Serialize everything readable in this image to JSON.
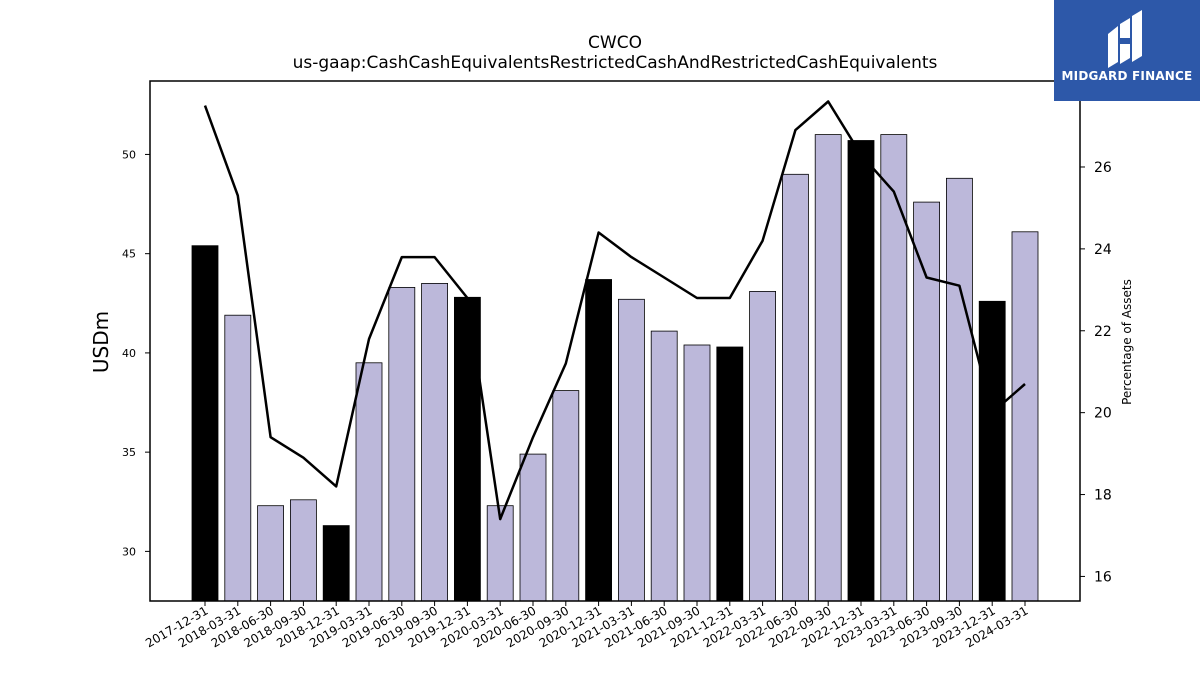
{
  "chart_data": {
    "type": "bar",
    "title": "CWCO",
    "subtitle": "us-gaap:CashCashEquivalentsRestrictedCashAndRestrictedCashEquivalents",
    "ylabel": "USDm",
    "y2label": "Percentage of Assets",
    "ylim": [
      27.5,
      53.7
    ],
    "y2lim": [
      15.4,
      28.1
    ],
    "yticks": [
      30,
      35,
      40,
      45,
      50
    ],
    "y2ticks": [
      16,
      18,
      20,
      22,
      24,
      26
    ],
    "categories": [
      "2017-12-31",
      "2018-03-31",
      "2018-06-30",
      "2018-09-30",
      "2018-12-31",
      "2019-03-31",
      "2019-06-30",
      "2019-09-30",
      "2019-12-31",
      "2020-03-31",
      "2020-06-30",
      "2020-09-30",
      "2020-12-31",
      "2021-03-31",
      "2021-06-30",
      "2021-09-30",
      "2021-12-31",
      "2022-03-31",
      "2022-06-30",
      "2022-09-30",
      "2022-12-31",
      "2023-03-31",
      "2023-06-30",
      "2023-09-30",
      "2023-12-31",
      "2024-03-31"
    ],
    "series": [
      {
        "kind": "bar",
        "values": [
          45.4,
          41.9,
          32.3,
          32.6,
          31.3,
          39.5,
          43.3,
          43.5,
          42.8,
          32.3,
          34.9,
          38.1,
          43.7,
          42.7,
          41.1,
          40.4,
          40.3,
          43.1,
          49.0,
          51.0,
          50.7,
          51.0,
          47.6,
          48.8,
          42.6,
          46.1
        ],
        "colors": [
          "#000000",
          "#bcb8da",
          "#bcb8da",
          "#bcb8da",
          "#000000",
          "#bcb8da",
          "#bcb8da",
          "#bcb8da",
          "#000000",
          "#bcb8da",
          "#bcb8da",
          "#bcb8da",
          "#000000",
          "#bcb8da",
          "#bcb8da",
          "#bcb8da",
          "#000000",
          "#bcb8da",
          "#bcb8da",
          "#bcb8da",
          "#000000",
          "#bcb8da",
          "#bcb8da",
          "#bcb8da",
          "#000000",
          "#bcb8da"
        ]
      },
      {
        "kind": "line",
        "axis": "right",
        "color": "#000000",
        "values": [
          27.5,
          25.3,
          19.4,
          18.9,
          18.2,
          21.8,
          23.8,
          23.8,
          22.8,
          17.4,
          19.4,
          21.2,
          24.4,
          23.8,
          23.3,
          22.8,
          22.8,
          24.2,
          26.9,
          27.6,
          26.3,
          25.4,
          23.3,
          23.1,
          20.0,
          20.7
        ]
      }
    ]
  },
  "logo": {
    "text": "MIDGARD FINANCE",
    "color": "#2d58a9"
  }
}
